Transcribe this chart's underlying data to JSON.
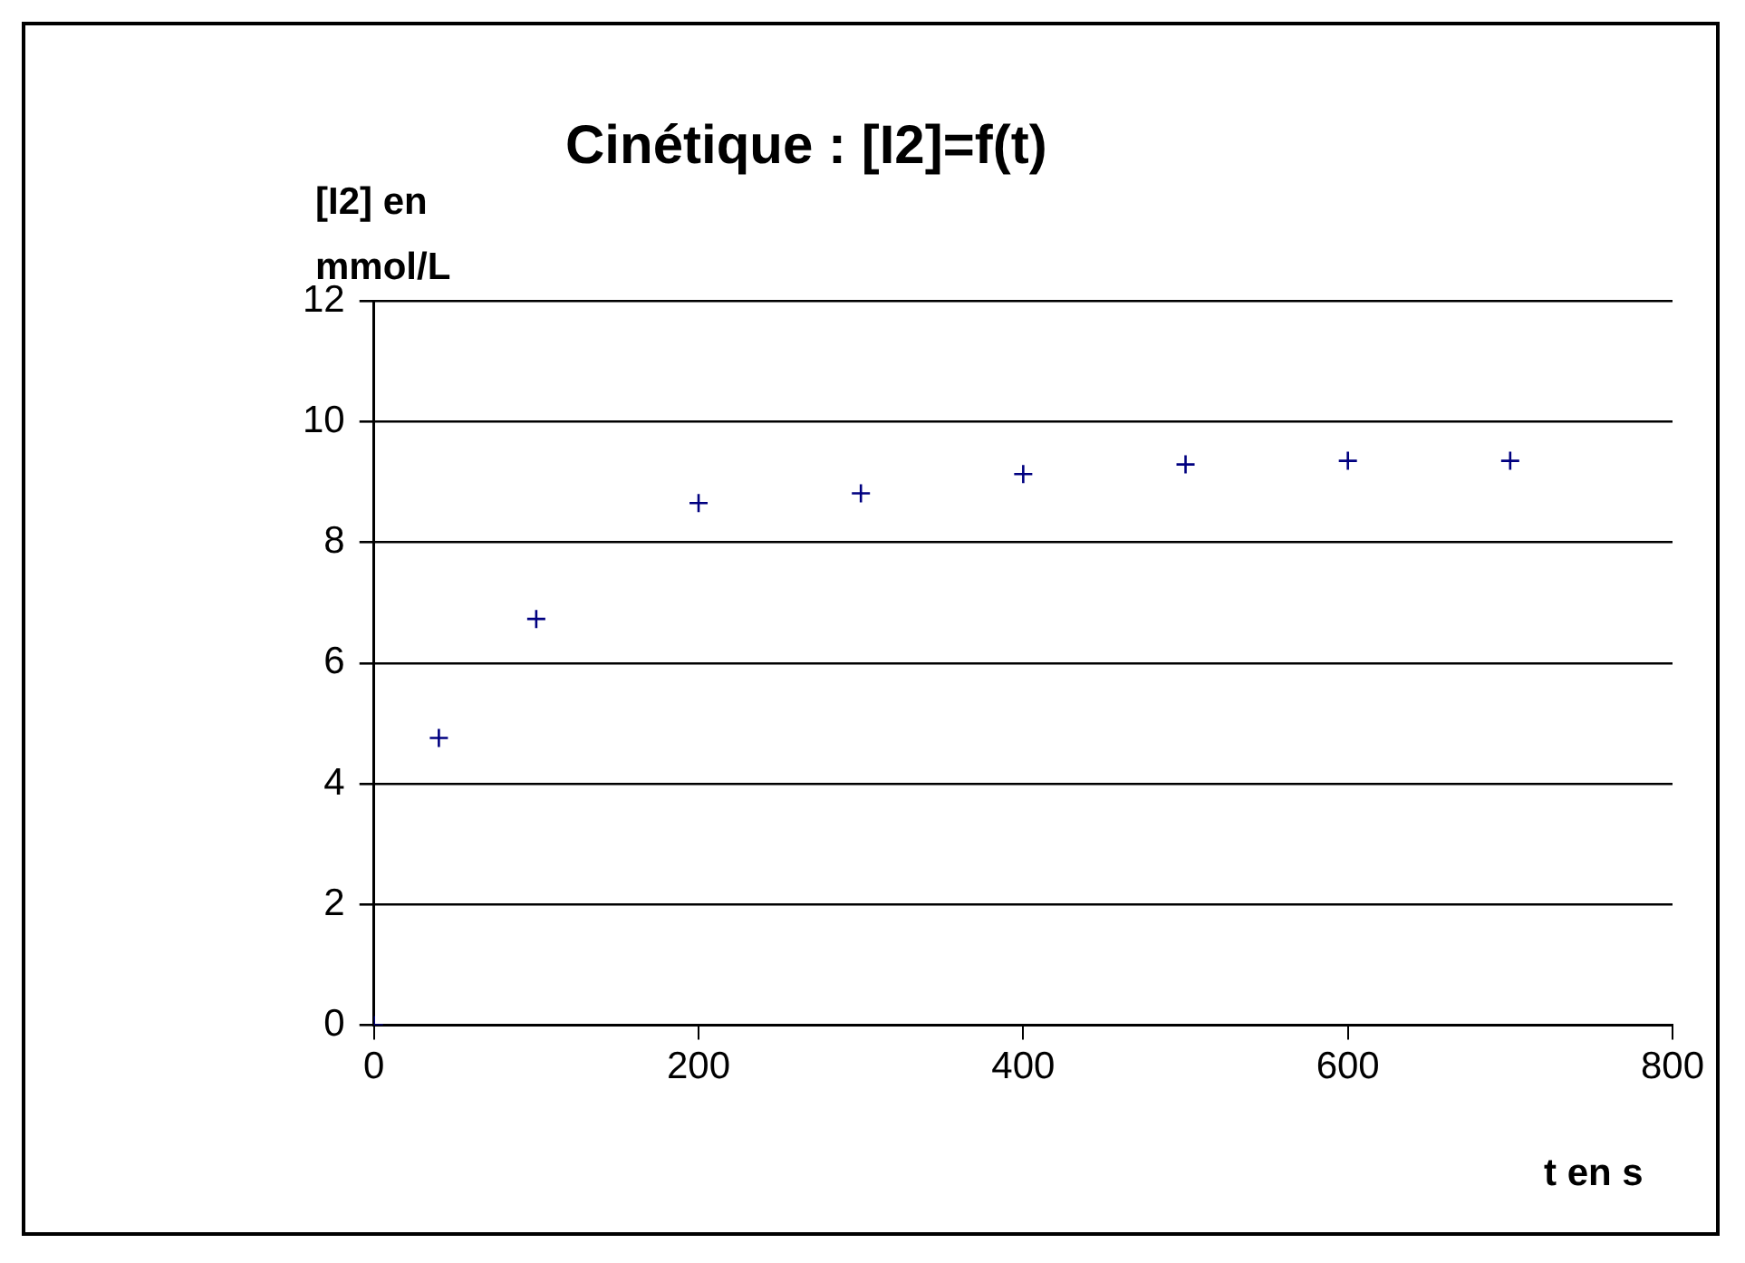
{
  "chart_data": {
    "type": "scatter",
    "title": "Cinétique : [I2]=f(t)",
    "xlabel": "t en s",
    "ylabel": "[I2] en mmol/L",
    "x": [
      0,
      40,
      100,
      200,
      300,
      400,
      500,
      600,
      700
    ],
    "series": [
      {
        "color": "#000080",
        "values": [
          0,
          4.76,
          6.73,
          8.65,
          8.81,
          9.13,
          9.29,
          9.35,
          9.35
        ]
      }
    ],
    "xlim": [
      0,
      800
    ],
    "xticks": [
      0,
      200,
      400,
      600,
      800
    ],
    "ylim": [
      0,
      12
    ],
    "yticks": [
      0,
      2,
      4,
      6,
      8,
      10,
      12
    ],
    "grid": "y",
    "legend": false,
    "marker": "cross"
  }
}
